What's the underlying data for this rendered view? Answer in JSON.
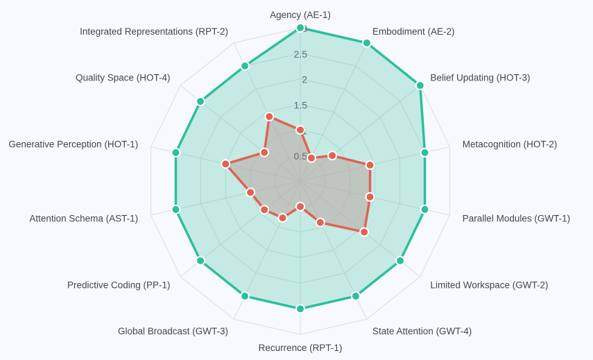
{
  "chart_data": {
    "type": "radar",
    "title": "",
    "axes": [
      "Agency (AE-1)",
      "Embodiment (AE-2)",
      "Belief Updating (HOT-3)",
      "Metacognition (HOT-2)",
      "Parallel Modules (GWT-1)",
      "Limited Workspace (GWT-2)",
      "State Attention (GWT-4)",
      "Recurrence (RPT-1)",
      "Global Broadcast (GWT-3)",
      "Predictive Coding (PP-1)",
      "Attention Schema (AST-1)",
      "Generative Perception (HOT-1)",
      "Quality Space (HOT-4)",
      "Integrated Representations (RPT-2)"
    ],
    "ticks": [
      "0.5",
      "1",
      "1.5",
      "2",
      "2.5",
      "3"
    ],
    "range": [
      0,
      3
    ],
    "grid": true,
    "legend": "none",
    "series": [
      {
        "values": [
          3,
          3,
          3,
          2.5,
          2.5,
          2.5,
          2.5,
          2.5,
          2.5,
          2.5,
          2.5,
          2.5,
          2.5,
          2.5
        ],
        "stroke": "#2bbf9d",
        "fill": "#2bbf9d"
      },
      {
        "values": [
          1,
          0.5,
          0.8,
          1.4,
          1.4,
          1.6,
          0.9,
          0.5,
          0.8,
          0.9,
          1.0,
          1.5,
          0.9,
          1.4
        ],
        "stroke": "#e06353",
        "fill": "#b9a7a2"
      }
    ]
  }
}
